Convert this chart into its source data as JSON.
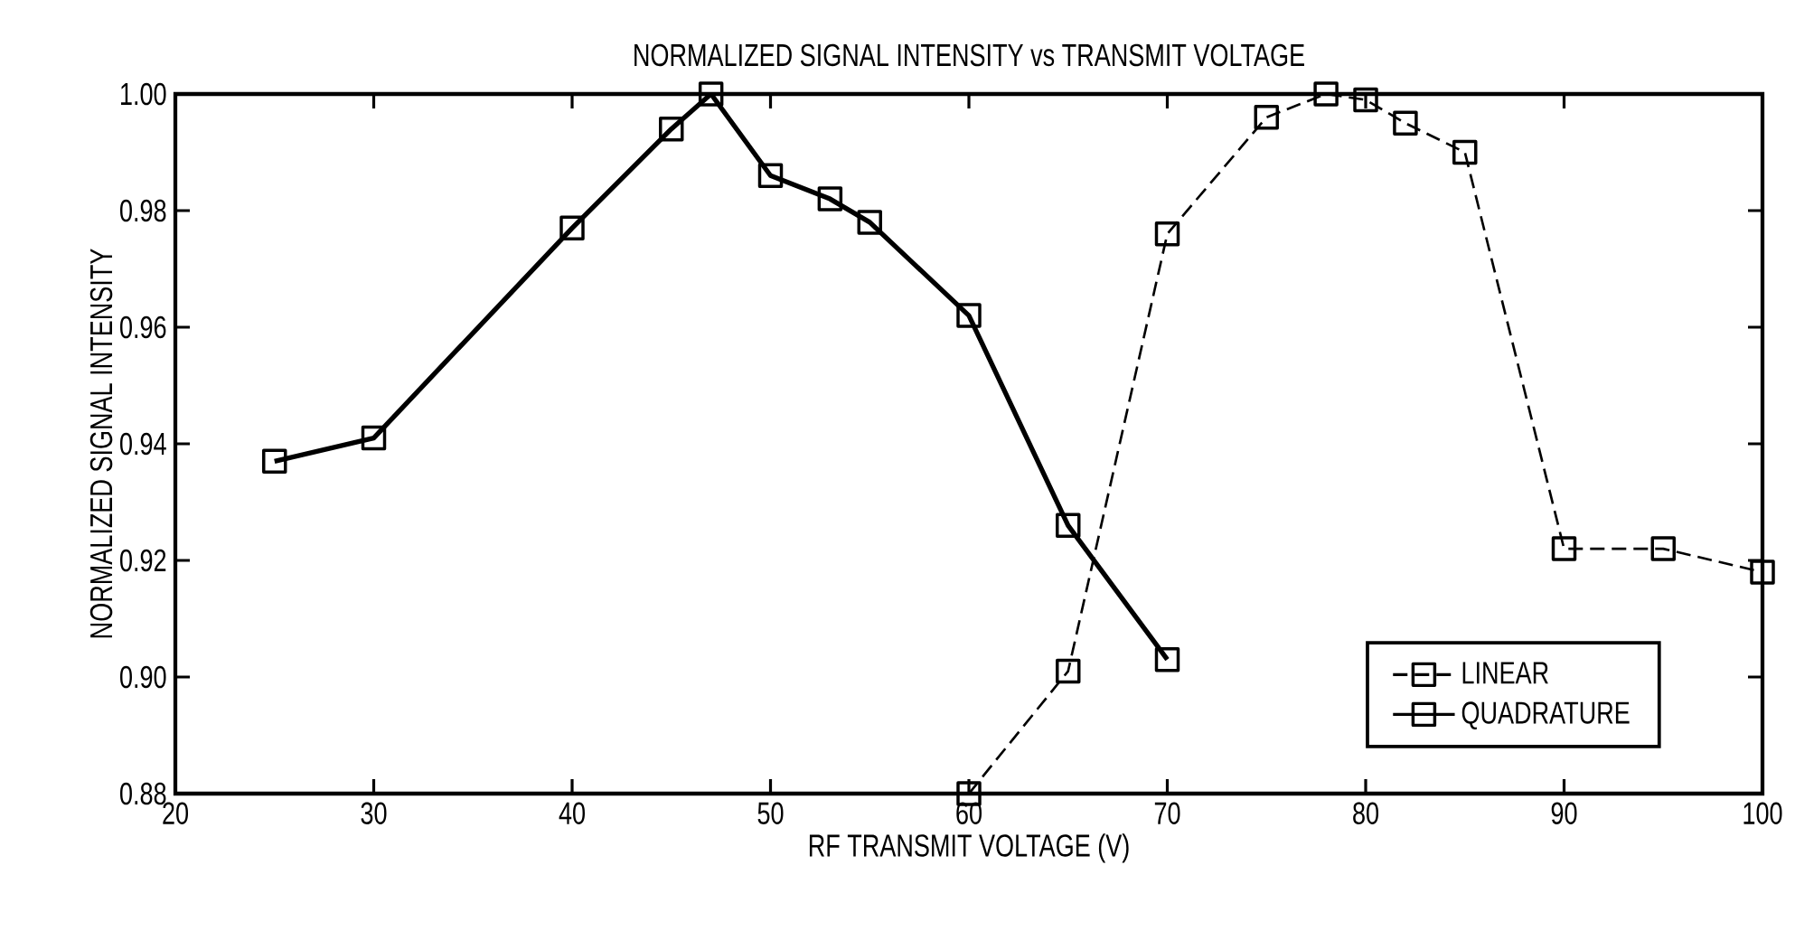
{
  "chart_data": {
    "type": "line",
    "title": "NORMALIZED SIGNAL INTENSITY vs TRANSMIT VOLTAGE",
    "xlabel": "RF TRANSMIT VOLTAGE (V)",
    "ylabel": "NORMALIZED SIGNAL INTENSITY",
    "xlim": [
      20,
      100
    ],
    "xticks": [
      20,
      30,
      40,
      50,
      60,
      70,
      80,
      90,
      100
    ],
    "ylim": [
      0.88,
      1.0
    ],
    "yticks": [
      {
        "value": 0.88,
        "label": "0.88"
      },
      {
        "value": 0.9,
        "label": "0.90"
      },
      {
        "value": 0.92,
        "label": "0.92"
      },
      {
        "value": 0.94,
        "label": "0.94"
      },
      {
        "value": 0.96,
        "label": "0.96"
      },
      {
        "value": 0.98,
        "label": "0.98"
      },
      {
        "value": 1.0,
        "label": "1.00"
      }
    ],
    "legend": "bottom right",
    "marker": "square",
    "grid": false,
    "series": [
      {
        "name": "LINEAR",
        "color": "#000000",
        "line_style": "dashed",
        "x": [
          60,
          65,
          70,
          75,
          78,
          80,
          82,
          85,
          90,
          95,
          100
        ],
        "values": [
          0.88,
          0.901,
          0.976,
          0.996,
          1.0,
          0.999,
          0.995,
          0.99,
          0.922,
          0.922,
          0.918
        ]
      },
      {
        "name": "QUADRATURE",
        "color": "#000000",
        "line_style": "solid",
        "x": [
          25,
          30,
          40,
          45,
          47,
          50,
          53,
          55,
          60,
          65,
          70
        ],
        "values": [
          0.937,
          0.941,
          0.977,
          0.994,
          1.0,
          0.986,
          0.982,
          0.978,
          0.962,
          0.926,
          0.903
        ]
      }
    ]
  }
}
